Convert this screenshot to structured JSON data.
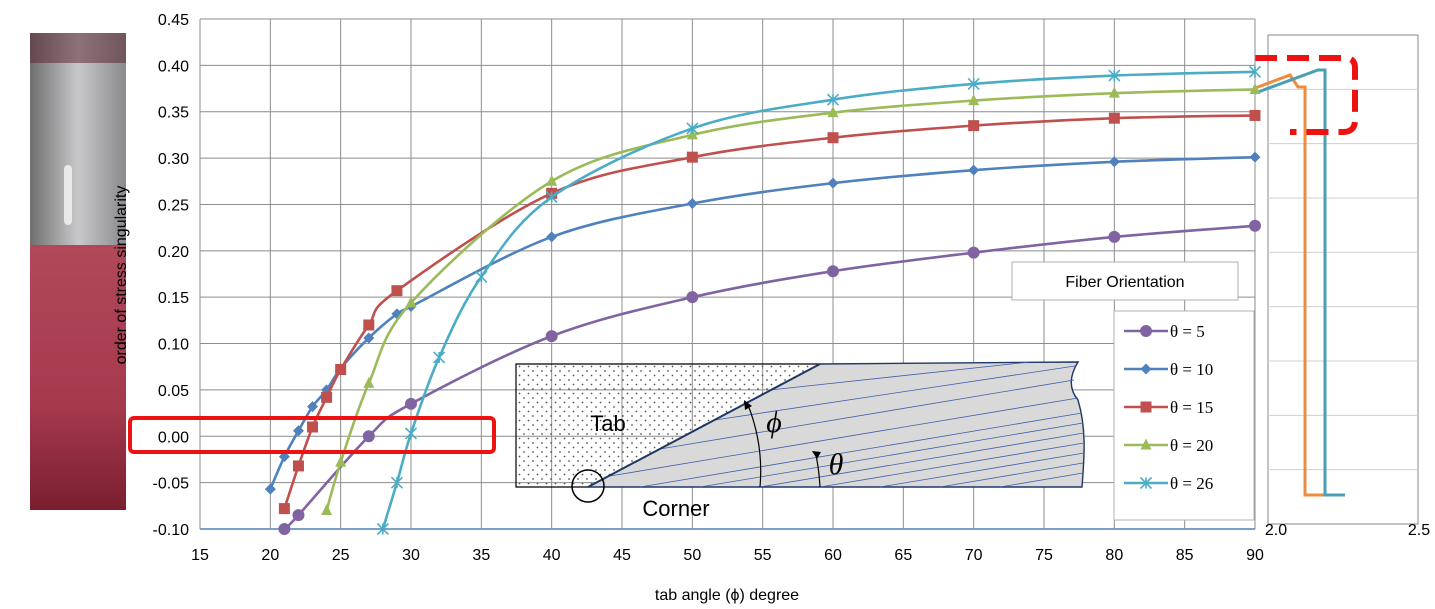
{
  "chart_data": {
    "type": "line",
    "xlabel": "tab angle (ϕ) degree",
    "ylabel": "order of stress singularity",
    "xlim": [
      15,
      90
    ],
    "ylim": [
      -0.1,
      0.45
    ],
    "x_ticks": [
      "15",
      "20",
      "25",
      "30",
      "35",
      "40",
      "45",
      "50",
      "55",
      "60",
      "65",
      "70",
      "75",
      "80",
      "85",
      "90"
    ],
    "y_ticks": [
      "-0.10",
      "-0.05",
      "0.00",
      "0.05",
      "0.10",
      "0.15",
      "0.20",
      "0.25",
      "0.30",
      "0.35",
      "0.40",
      "0.45"
    ],
    "grid": true,
    "legend_title": "Fiber Orientation",
    "legend_position": "right",
    "series": [
      {
        "name": "θ = 5",
        "color": "#8064a2",
        "marker": "circle",
        "x": [
          21,
          22,
          27,
          30,
          40,
          50,
          60,
          70,
          80,
          90
        ],
        "y": [
          -0.1,
          -0.085,
          0.0,
          0.035,
          0.108,
          0.15,
          0.178,
          0.198,
          0.215,
          0.227
        ]
      },
      {
        "name": "θ = 10",
        "color": "#4f81bd",
        "marker": "diamond",
        "x": [
          20,
          21,
          22,
          23,
          24,
          25,
          27,
          29,
          30,
          40,
          50,
          60,
          70,
          80,
          90
        ],
        "y": [
          -0.057,
          -0.022,
          0.006,
          0.032,
          0.05,
          0.073,
          0.106,
          0.132,
          0.14,
          0.215,
          0.251,
          0.273,
          0.287,
          0.296,
          0.301
        ]
      },
      {
        "name": "θ = 15",
        "color": "#c0504d",
        "marker": "square",
        "x": [
          21,
          22,
          23,
          24,
          25,
          27,
          29,
          40,
          50,
          60,
          70,
          80,
          90
        ],
        "y": [
          -0.078,
          -0.032,
          0.01,
          0.042,
          0.072,
          0.12,
          0.157,
          0.262,
          0.301,
          0.322,
          0.335,
          0.343,
          0.346
        ]
      },
      {
        "name": "θ = 20",
        "color": "#9bbb59",
        "marker": "triangle",
        "x": [
          24,
          25,
          27,
          30,
          40,
          50,
          60,
          70,
          80,
          90
        ],
        "y": [
          -0.08,
          -0.028,
          0.057,
          0.144,
          0.275,
          0.325,
          0.349,
          0.362,
          0.37,
          0.374
        ]
      },
      {
        "name": "θ = 26",
        "color": "#4bacc6",
        "marker": "star",
        "x": [
          28,
          29,
          30,
          32,
          35,
          40,
          50,
          60,
          70,
          80,
          90
        ],
        "y": [
          -0.1,
          -0.05,
          0.003,
          0.085,
          0.172,
          0.258,
          0.332,
          0.363,
          0.38,
          0.389,
          0.393
        ]
      }
    ],
    "annotations": {
      "tab_label": "Tab",
      "corner_label": "Corner",
      "phi_symbol": "ϕ",
      "theta_symbol": "θ",
      "side_plot_ticks": [
        "2.0",
        "2.5"
      ]
    }
  }
}
